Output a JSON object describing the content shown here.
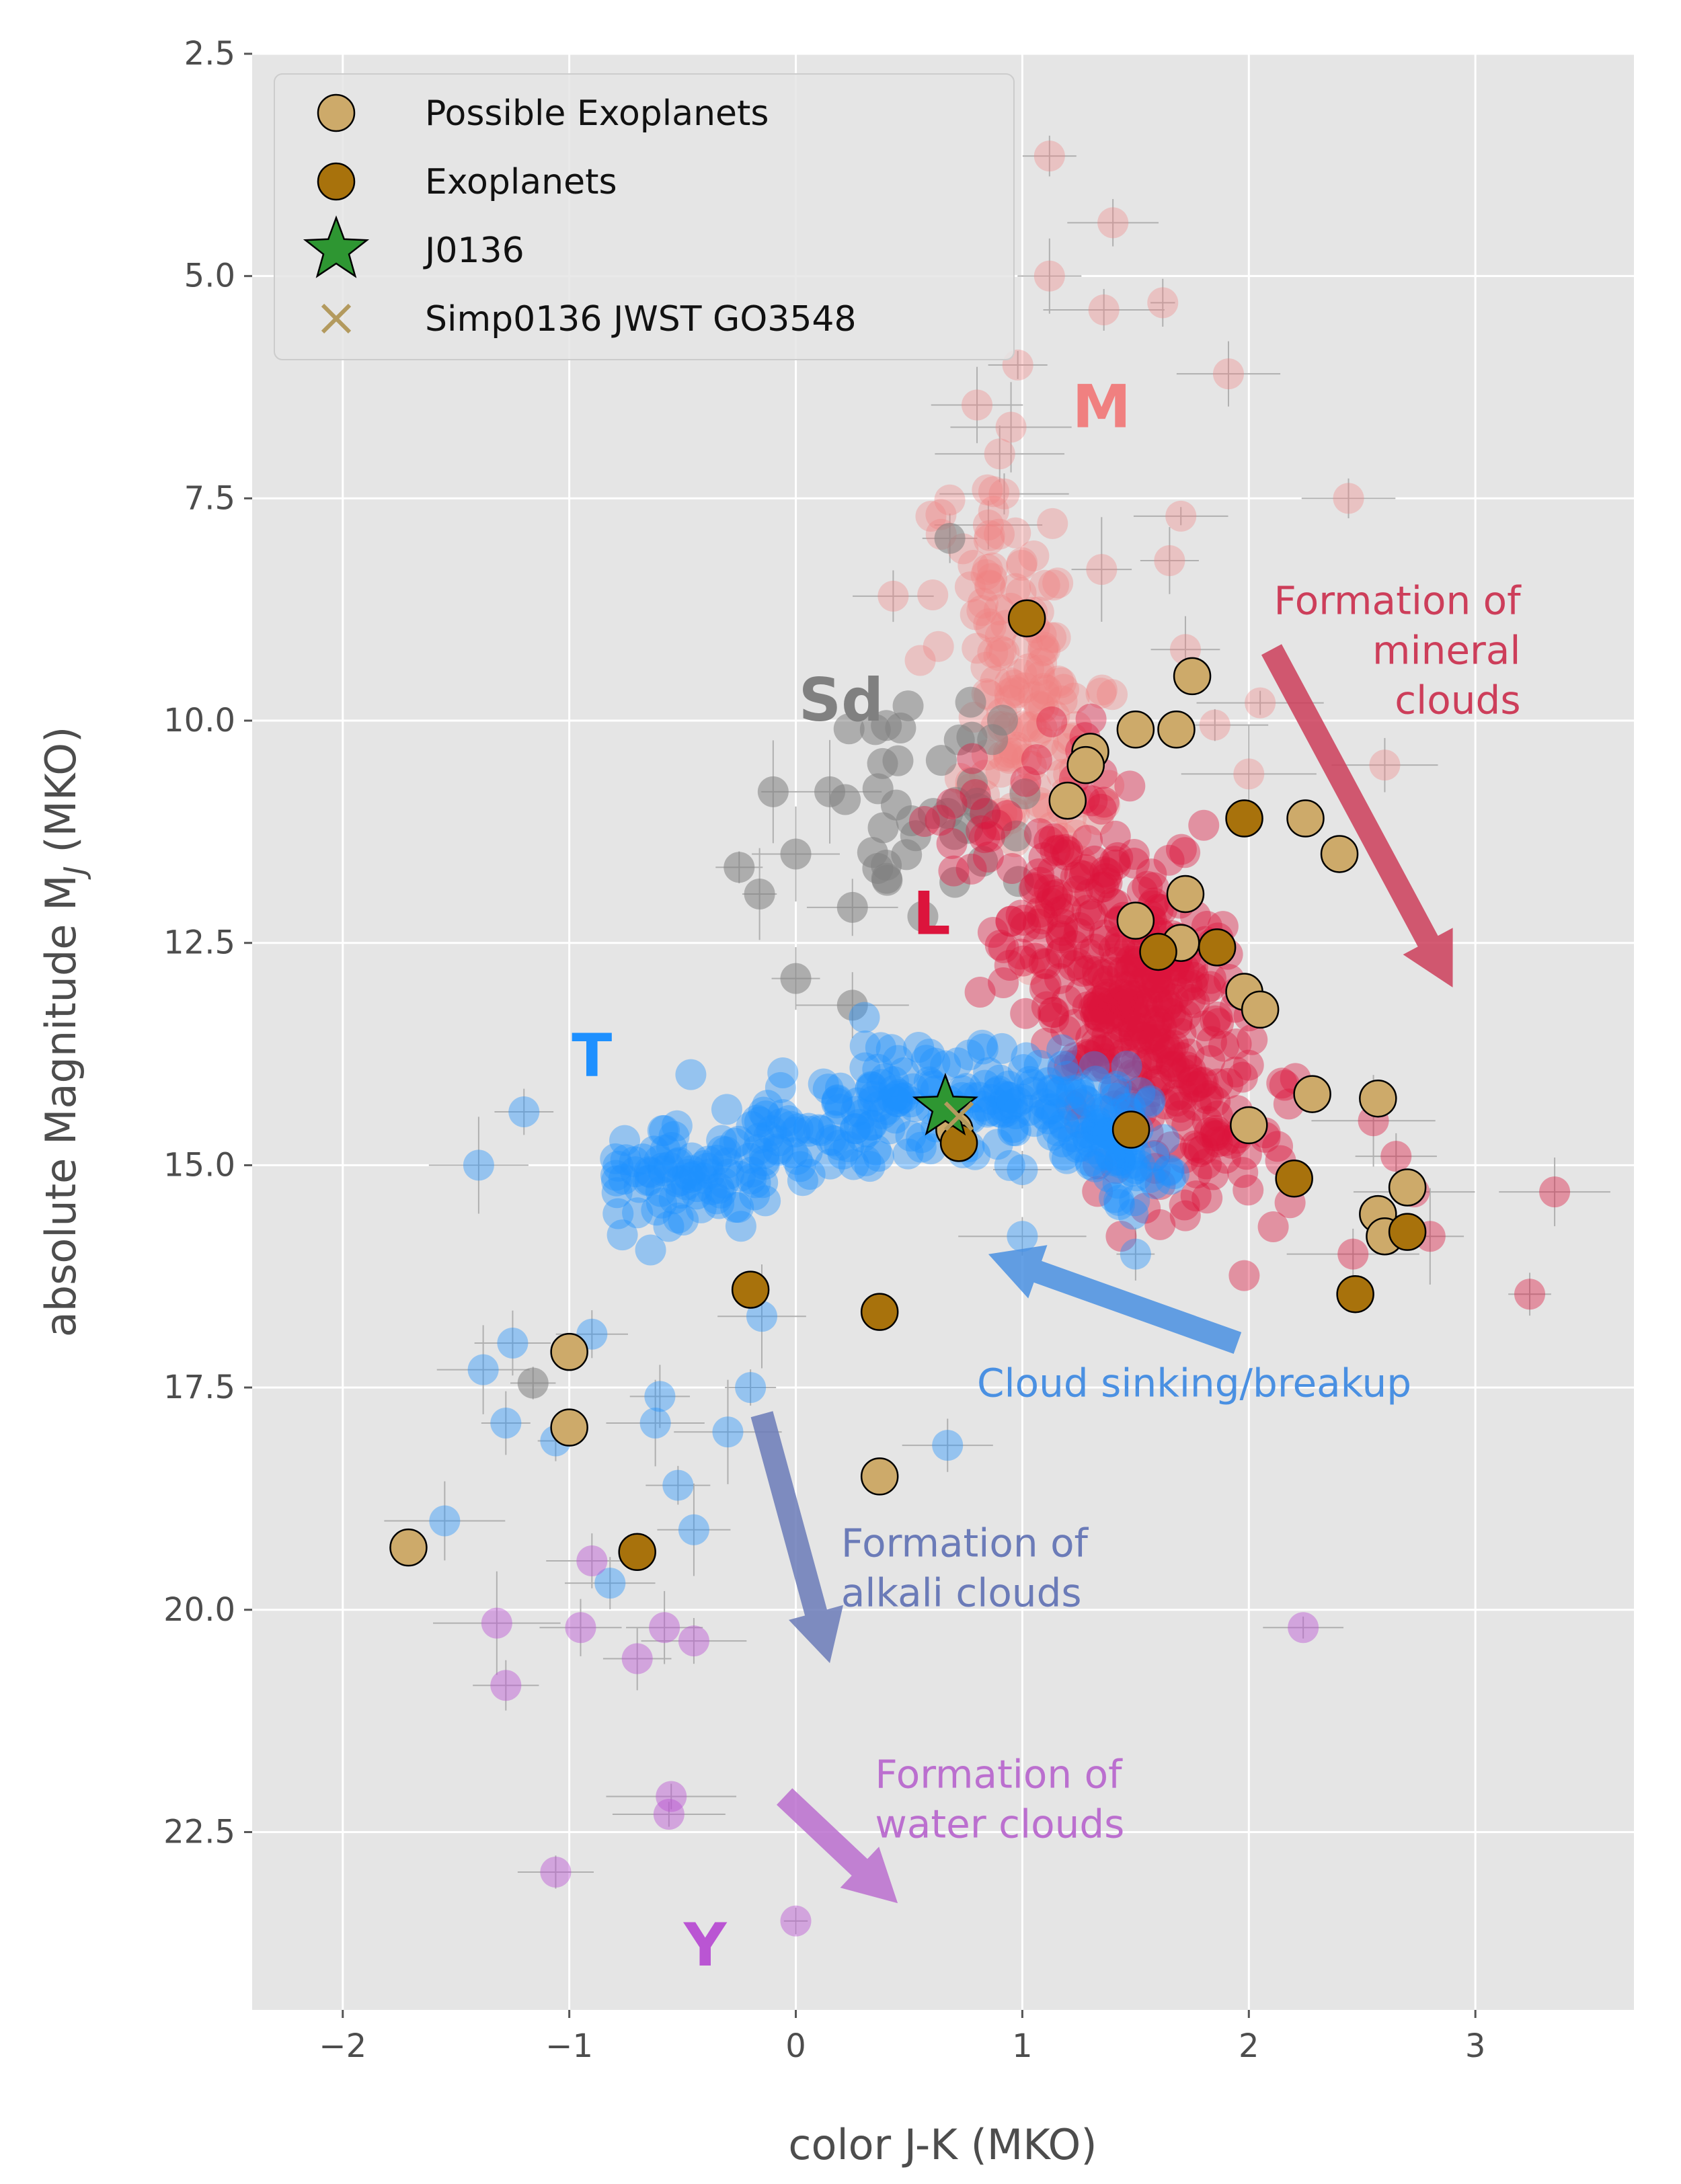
{
  "chart_data": {
    "type": "scatter",
    "xlabel": "color J-K (MKO)",
    "ylabel_prefix": "absolute Magnitude M",
    "ylabel_sub": "J",
    "ylabel_suffix": " (MKO)",
    "xlim": [
      -2.4,
      3.7
    ],
    "ylim": [
      24.5,
      2.5
    ],
    "y_inverted": true,
    "grid": true,
    "xticks": [
      -2,
      -1,
      0,
      1,
      2,
      3
    ],
    "xtick_labels": [
      "−2",
      "−1",
      "0",
      "1",
      "2",
      "3"
    ],
    "yticks": [
      2.5,
      5.0,
      7.5,
      10.0,
      12.5,
      15.0,
      17.5,
      20.0,
      22.5
    ],
    "ytick_labels": [
      "2.5",
      "5.0",
      "7.5",
      "10.0",
      "12.5",
      "15.0",
      "17.5",
      "20.0",
      "22.5"
    ],
    "legend_position": "top-left",
    "legend": [
      {
        "label": "Possible Exoplanets",
        "marker": "circle",
        "color": "#cdaa6a"
      },
      {
        "label": "Exoplanets",
        "marker": "circle",
        "color": "#a8720c"
      },
      {
        "label": "J0136",
        "marker": "star",
        "color": "#2e9632"
      },
      {
        "label": "Simp0136 JWST GO3548",
        "marker": "x",
        "color": "#b39a5e"
      }
    ],
    "colors": {
      "background": "#e5e5e5",
      "M": "#f08080",
      "L": "#dc143c",
      "T": "#1e90ff",
      "Y": "#ba55d3",
      "Sd": "#808080",
      "possible": "#cdaa6a",
      "exoplanet": "#a8720c",
      "j0136": "#2e9632",
      "simp": "#b39a5e",
      "arrow_mineral": "#cd3e5a",
      "arrow_breakup": "#4a90e2",
      "arrow_alkali": "#6b7bb8",
      "arrow_water": "#bb6fcf"
    },
    "class_labels": [
      {
        "text": "M",
        "x": 1.35,
        "y": 6.7,
        "color": "#f08080"
      },
      {
        "text": "Sd",
        "x": 0.2,
        "y": 10.0,
        "color": "#808080"
      },
      {
        "text": "L",
        "x": 0.6,
        "y": 12.4,
        "color": "#dc143c"
      },
      {
        "text": "T",
        "x": -0.9,
        "y": 14.0,
        "color": "#1e90ff"
      },
      {
        "text": "Y",
        "x": -0.4,
        "y": 24.0,
        "color": "#ba55d3"
      }
    ],
    "annotations": [
      {
        "lines": [
          "Formation of",
          "mineral",
          "clouds"
        ],
        "x": 3.2,
        "y": 8.8,
        "anchor": "end",
        "color": "#cd3e5a",
        "arrow": {
          "x1": 2.1,
          "y1": 9.2,
          "x2": 2.9,
          "y2": 13.0
        }
      },
      {
        "lines": [
          "Cloud sinking/breakup"
        ],
        "x": 0.8,
        "y": 17.6,
        "anchor": "start",
        "color": "#4a90e2",
        "arrow": {
          "x1": 1.95,
          "y1": 17.0,
          "x2": 0.85,
          "y2": 16.0
        }
      },
      {
        "lines": [
          "Formation of",
          "alkali clouds"
        ],
        "x": 0.2,
        "y": 19.4,
        "anchor": "start",
        "color": "#6b7bb8",
        "arrow": {
          "x1": -0.15,
          "y1": 17.8,
          "x2": 0.15,
          "y2": 20.6
        }
      },
      {
        "lines": [
          "Formation of",
          "water clouds"
        ],
        "x": 0.35,
        "y": 22.0,
        "anchor": "start",
        "color": "#bb6fcf",
        "arrow": {
          "x1": -0.05,
          "y1": 22.1,
          "x2": 0.45,
          "y2": 23.3
        }
      }
    ],
    "clusters": [
      {
        "name": "M",
        "color": "#f08080",
        "opacity": 0.35,
        "seed": 11,
        "shape": "ellipse",
        "n": 150,
        "cx": 1.0,
        "cy": 9.7,
        "sx": 0.16,
        "sy": 1.2,
        "rho": 0.4
      },
      {
        "name": "L",
        "color": "#dc143c",
        "opacity": 0.4,
        "seed": 23,
        "shape": "ellipse",
        "n": 420,
        "cx": 1.45,
        "cy": 13.0,
        "sx": 0.3,
        "sy": 1.1,
        "rho": 0.55
      },
      {
        "name": "Sd",
        "color": "#808080",
        "opacity": 0.55,
        "seed": 37,
        "shape": "ellipse",
        "n": 40,
        "cx": 0.6,
        "cy": 10.8,
        "sx": 0.18,
        "sy": 0.6,
        "rho": 0.2
      },
      {
        "name": "T",
        "color": "#1e90ff",
        "opacity": 0.4,
        "seed": 41,
        "shape": "band",
        "n": 360,
        "spine": [
          [
            -0.8,
            15.3
          ],
          [
            -0.2,
            14.8
          ],
          [
            0.3,
            14.4
          ],
          [
            0.9,
            14.2
          ],
          [
            1.3,
            14.5
          ],
          [
            1.55,
            15.0
          ]
        ],
        "width": 0.35
      }
    ],
    "points": {
      "M": [
        [
          1.12,
          3.65
        ],
        [
          1.4,
          4.4
        ],
        [
          1.12,
          5.0
        ],
        [
          1.62,
          5.3
        ],
        [
          1.36,
          5.38
        ],
        [
          1.91,
          6.1
        ],
        [
          0.98,
          6.0
        ],
        [
          0.8,
          6.45
        ],
        [
          0.95,
          6.7
        ],
        [
          0.9,
          7.0
        ],
        [
          0.92,
          7.45
        ],
        [
          0.85,
          7.8
        ],
        [
          1.7,
          7.7
        ],
        [
          1.65,
          8.2
        ],
        [
          2.44,
          7.5
        ],
        [
          0.43,
          8.6
        ],
        [
          2.6,
          10.5
        ],
        [
          1.35,
          8.3
        ],
        [
          1.72,
          9.2
        ],
        [
          2.05,
          9.8
        ],
        [
          1.85,
          10.05
        ],
        [
          2.0,
          10.6
        ]
      ],
      "L": [
        [
          2.73,
          15.3
        ],
        [
          2.8,
          15.8
        ],
        [
          3.35,
          15.3
        ],
        [
          3.24,
          16.45
        ],
        [
          2.55,
          14.5
        ],
        [
          2.65,
          14.9
        ],
        [
          2.46,
          16.0
        ]
      ],
      "Sd": [
        [
          0.68,
          7.95
        ],
        [
          -0.25,
          11.65
        ],
        [
          -0.16,
          11.95
        ],
        [
          0.25,
          12.1
        ],
        [
          0.0,
          12.9
        ],
        [
          0.25,
          13.2
        ],
        [
          0.0,
          11.5
        ],
        [
          -1.16,
          17.45
        ],
        [
          0.15,
          10.8
        ],
        [
          -0.1,
          10.8
        ]
      ],
      "T": [
        [
          -1.4,
          15.0
        ],
        [
          -1.2,
          14.4
        ],
        [
          -1.55,
          19.0
        ],
        [
          -1.38,
          17.3
        ],
        [
          -1.25,
          17.0
        ],
        [
          -1.28,
          17.9
        ],
        [
          -1.06,
          18.1
        ],
        [
          -0.82,
          19.7
        ],
        [
          -0.62,
          17.9
        ],
        [
          -0.52,
          18.6
        ],
        [
          -0.45,
          19.1
        ],
        [
          -0.3,
          18.0
        ],
        [
          -0.2,
          17.5
        ],
        [
          0.67,
          18.15
        ],
        [
          1.0,
          15.8
        ],
        [
          1.5,
          16.0
        ],
        [
          -0.9,
          16.9
        ],
        [
          -0.6,
          17.6
        ],
        [
          -0.15,
          16.7
        ],
        [
          1.0,
          15.05
        ]
      ],
      "Y": [
        [
          -1.32,
          20.15
        ],
        [
          -1.28,
          20.85
        ],
        [
          -0.95,
          20.2
        ],
        [
          -0.7,
          20.55
        ],
        [
          -0.58,
          20.2
        ],
        [
          -0.45,
          20.35
        ],
        [
          -1.06,
          22.95
        ],
        [
          -0.55,
          22.1
        ],
        [
          -0.56,
          22.3
        ],
        [
          0.0,
          23.5
        ],
        [
          2.24,
          20.2
        ],
        [
          -0.9,
          19.45
        ]
      ],
      "possible": [
        [
          1.75,
          9.5
        ],
        [
          1.5,
          10.1
        ],
        [
          1.68,
          10.1
        ],
        [
          1.3,
          10.35
        ],
        [
          1.28,
          10.5
        ],
        [
          1.2,
          10.9
        ],
        [
          2.25,
          11.1
        ],
        [
          2.4,
          11.5
        ],
        [
          1.72,
          11.95
        ],
        [
          1.5,
          12.25
        ],
        [
          1.7,
          12.5
        ],
        [
          1.98,
          13.05
        ],
        [
          2.05,
          13.25
        ],
        [
          2.28,
          14.2
        ],
        [
          2.57,
          14.25
        ],
        [
          2.0,
          14.55
        ],
        [
          2.7,
          15.25
        ],
        [
          2.57,
          15.55
        ],
        [
          2.6,
          15.8
        ],
        [
          -1.0,
          17.1
        ],
        [
          -1.0,
          17.95
        ],
        [
          -1.71,
          19.3
        ],
        [
          0.37,
          18.5
        ],
        [
          0.7,
          14.6
        ]
      ],
      "exoplanets": [
        [
          1.02,
          8.85
        ],
        [
          1.98,
          11.1
        ],
        [
          1.6,
          12.6
        ],
        [
          1.86,
          12.55
        ],
        [
          1.48,
          14.6
        ],
        [
          2.2,
          15.15
        ],
        [
          2.7,
          15.75
        ],
        [
          2.47,
          16.45
        ],
        [
          0.72,
          14.75
        ],
        [
          -0.2,
          16.4
        ],
        [
          0.37,
          16.65
        ],
        [
          -0.7,
          19.35
        ]
      ],
      "j0136": [
        0.66,
        14.35
      ],
      "simp": [
        0.72,
        14.45
      ]
    }
  }
}
